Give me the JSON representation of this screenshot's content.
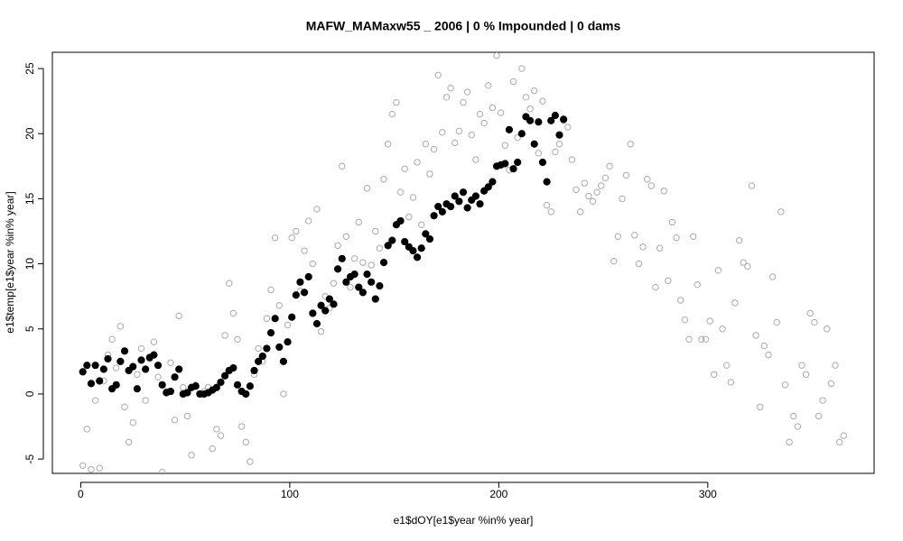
{
  "chart_data": {
    "type": "scatter",
    "title": "MAFW_MAMaxw55 _ 2006   |   0  % Impounded |  0  dams",
    "x_label": "e1$dOY[e1$year %in% year]",
    "y_label": "e1$temp[e1$year %in% year]",
    "xlim": [
      -13.56,
      379.56
    ],
    "ylim": [
      -6.1,
      26.25
    ],
    "xticks": [
      0,
      100,
      200,
      300
    ],
    "yticks": [
      -5,
      0,
      5,
      10,
      15,
      20,
      25
    ],
    "series": [
      {
        "color": "#aaaaaa",
        "marker": "open",
        "x": [
          1,
          3,
          5,
          7,
          9,
          11,
          13,
          15,
          17,
          19,
          21,
          23,
          25,
          27,
          29,
          31,
          33,
          35,
          37,
          39,
          41,
          43,
          45,
          47,
          49,
          51,
          53,
          55,
          57,
          59,
          61,
          63,
          65,
          67,
          69,
          71,
          73,
          75,
          77,
          79,
          81,
          83,
          85,
          87,
          89,
          91,
          93,
          95,
          97,
          99,
          101,
          103,
          105,
          107,
          109,
          111,
          113,
          115,
          117,
          119,
          121,
          123,
          125,
          127,
          129,
          131,
          133,
          135,
          137,
          139,
          141,
          143,
          145,
          147,
          149,
          151,
          153,
          155,
          157,
          159,
          161,
          163,
          165,
          167,
          169,
          171,
          173,
          175,
          177,
          179,
          181,
          183,
          185,
          187,
          189,
          191,
          193,
          195,
          197,
          199,
          201,
          203,
          205,
          207,
          209,
          211,
          213,
          215,
          217,
          219,
          221,
          223,
          225,
          227,
          229,
          231,
          233,
          235,
          237,
          239,
          241,
          243,
          245,
          247,
          249,
          251,
          253,
          255,
          257,
          259,
          261,
          263,
          265,
          267,
          269,
          271,
          273,
          275,
          277,
          279,
          281,
          283,
          285,
          287,
          289,
          291,
          293,
          295,
          297,
          299,
          301,
          303,
          305,
          307,
          309,
          311,
          313,
          315,
          317,
          319,
          321,
          323,
          325,
          327,
          329,
          331,
          333,
          335,
          337,
          339,
          341,
          343,
          345,
          347,
          349,
          351,
          353,
          355,
          357,
          359,
          361,
          363,
          365
        ],
        "values": [
          -5.5,
          -2.7,
          -5.8,
          -0.5,
          -5.7,
          1.0,
          3.0,
          4.2,
          2.0,
          5.2,
          -1.0,
          -3.7,
          -2.2,
          1.5,
          3.5,
          -0.5,
          2.7,
          4.0,
          1.3,
          -6.0,
          0.2,
          2.4,
          -2.0,
          6.0,
          0.5,
          -1.7,
          -4.7,
          0.7,
          0.0,
          0.2,
          0.5,
          -4.2,
          -2.7,
          -3.2,
          4.5,
          8.5,
          6.2,
          4.2,
          -2.5,
          -3.7,
          -5.2,
          1.5,
          3.5,
          2.5,
          5.8,
          8.0,
          12.0,
          6.8,
          0.0,
          5.3,
          12.0,
          12.5,
          7.9,
          11.0,
          13.3,
          10.0,
          14.2,
          4.8,
          7.5,
          6.6,
          8.5,
          11.4,
          17.5,
          12.1,
          8.2,
          10.4,
          13.2,
          10.1,
          15.8,
          9.9,
          12.5,
          11.2,
          16.5,
          19.2,
          21.5,
          22.4,
          15.5,
          17.3,
          13.6,
          15.1,
          17.8,
          13.0,
          19.2,
          16.9,
          18.8,
          24.5,
          20.1,
          22.8,
          23.5,
          19.3,
          20.2,
          22.4,
          23.2,
          19.9,
          18.0,
          21.5,
          20.8,
          23.7,
          22.0,
          26.0,
          21.6,
          19.1,
          17.2,
          24.0,
          19.7,
          25.0,
          22.8,
          21.9,
          23.3,
          18.5,
          22.5,
          14.5,
          14.0,
          18.6,
          19.2,
          21.0,
          20.5,
          18.0,
          15.7,
          14.0,
          16.2,
          15.2,
          14.8,
          15.5,
          16.0,
          16.6,
          17.5,
          10.2,
          12.1,
          15.0,
          16.8,
          19.2,
          12.2,
          10.0,
          11.3,
          16.5,
          16.0,
          8.2,
          11.2,
          15.6,
          8.7,
          13.2,
          12.0,
          7.2,
          5.7,
          4.2,
          12.1,
          8.4,
          4.2,
          4.2,
          5.6,
          1.5,
          9.5,
          5.0,
          2.2,
          0.9,
          7.0,
          11.8,
          10.1,
          9.8,
          16.0,
          4.5,
          -1.0,
          3.7,
          3.0,
          9.0,
          5.5,
          14.0,
          0.7,
          -3.7,
          -1.7,
          -2.5,
          2.2,
          1.5,
          6.2,
          5.5,
          -1.7,
          -0.5,
          5.0,
          0.8,
          2.2,
          -3.7,
          -3.2
        ]
      },
      {
        "color": "#000000",
        "marker": "filled",
        "x": [
          1,
          3,
          5,
          7,
          9,
          11,
          13,
          15,
          17,
          19,
          21,
          23,
          25,
          27,
          29,
          31,
          33,
          35,
          37,
          39,
          41,
          43,
          45,
          47,
          49,
          51,
          53,
          55,
          57,
          59,
          61,
          63,
          65,
          67,
          69,
          71,
          73,
          75,
          77,
          79,
          81,
          83,
          85,
          87,
          89,
          91,
          93,
          95,
          97,
          99,
          101,
          103,
          105,
          107,
          109,
          111,
          113,
          115,
          117,
          119,
          121,
          123,
          125,
          127,
          129,
          131,
          133,
          135,
          137,
          139,
          141,
          143,
          145,
          147,
          149,
          151,
          153,
          155,
          157,
          159,
          161,
          163,
          165,
          167,
          169,
          171,
          173,
          175,
          177,
          179,
          181,
          183,
          185,
          187,
          189,
          191,
          193,
          195,
          197,
          199,
          201,
          203,
          205,
          207,
          209,
          211,
          213,
          215,
          217,
          219,
          221,
          223,
          225,
          227,
          229,
          231
        ],
        "values": [
          1.7,
          2.2,
          0.8,
          2.2,
          1.0,
          1.9,
          2.7,
          0.4,
          0.7,
          2.5,
          3.3,
          1.8,
          2.1,
          0.4,
          2.6,
          1.9,
          2.8,
          3.0,
          2.2,
          0.7,
          0.1,
          0.2,
          1.3,
          1.9,
          0.0,
          0.1,
          0.5,
          0.6,
          0.0,
          0.0,
          0.1,
          0.3,
          0.5,
          0.9,
          1.4,
          1.8,
          2.0,
          0.7,
          0.2,
          0.0,
          0.6,
          1.8,
          2.5,
          2.9,
          3.5,
          4.7,
          5.8,
          3.6,
          2.5,
          4.0,
          5.9,
          7.6,
          8.6,
          7.8,
          9.0,
          6.2,
          5.4,
          6.8,
          6.4,
          7.3,
          6.9,
          9.6,
          10.4,
          8.6,
          9.0,
          9.2,
          8.2,
          7.8,
          9.2,
          8.6,
          7.3,
          8.3,
          10.1,
          11.4,
          11.8,
          13.0,
          13.3,
          11.7,
          11.3,
          11.0,
          10.5,
          11.2,
          12.3,
          11.9,
          13.7,
          14.4,
          14.0,
          14.6,
          14.4,
          15.2,
          14.8,
          15.5,
          14.3,
          14.9,
          15.2,
          14.6,
          15.6,
          15.9,
          16.3,
          17.5,
          17.6,
          17.7,
          20.3,
          17.3,
          17.8,
          20.0,
          21.3,
          21.0,
          19.2,
          20.9,
          17.8,
          16.3,
          21.0,
          21.4,
          19.9,
          21.1
        ]
      }
    ]
  }
}
